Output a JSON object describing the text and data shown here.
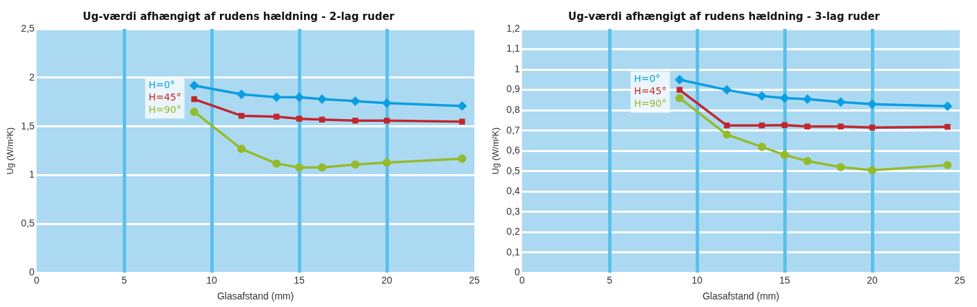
{
  "chart_data": [
    {
      "type": "line",
      "title": "Ug-værdi afhængigt af rudens hældning - 2-lag ruder",
      "xlabel": "Glasafstand (mm)",
      "ylabel": "Ug (W/m²K)",
      "xlim": [
        0,
        25
      ],
      "xticks": [
        0,
        5,
        10,
        15,
        20,
        25
      ],
      "ylim": [
        0,
        2.5
      ],
      "yticks": [
        0,
        {
          "value": 0.5,
          "label": "0,5"
        },
        1,
        {
          "value": 1.5,
          "label": "1,5"
        },
        2,
        {
          "value": 2.5,
          "label": "2,5"
        }
      ],
      "grid": true,
      "legend": "left",
      "x": [
        9,
        11.7,
        13.7,
        15,
        16.3,
        18.2,
        20,
        24.3
      ],
      "series": [
        {
          "name": "H=0°",
          "color": "#0a9ee0",
          "marker": "diamond",
          "values": [
            1.92,
            1.83,
            1.8,
            1.8,
            1.78,
            1.76,
            1.74,
            1.71
          ]
        },
        {
          "name": "H=45°",
          "color": "#c0272d",
          "marker": "square",
          "values": [
            1.78,
            1.61,
            1.6,
            1.58,
            1.57,
            1.56,
            1.56,
            1.55
          ]
        },
        {
          "name": "H=90°",
          "color": "#95bb2a",
          "marker": "circle",
          "values": [
            1.65,
            1.27,
            1.12,
            1.08,
            1.08,
            1.11,
            1.13,
            1.17
          ]
        }
      ]
    },
    {
      "type": "line",
      "title": "Ug-værdi afhængigt af rudens hældning - 3-lag ruder",
      "xlabel": "Glasafstand (mm)",
      "ylabel": "Ug (W/m²K)",
      "xlim": [
        0,
        25
      ],
      "xticks": [
        0,
        5,
        10,
        15,
        20,
        25
      ],
      "ylim": [
        0,
        1.2
      ],
      "yticks": [
        0,
        {
          "value": 0.1,
          "label": "0,1"
        },
        {
          "value": 0.2,
          "label": "0,2"
        },
        {
          "value": 0.3,
          "label": "0,3"
        },
        {
          "value": 0.4,
          "label": "0,4"
        },
        {
          "value": 0.5,
          "label": "0,5"
        },
        {
          "value": 0.6,
          "label": "0,6"
        },
        {
          "value": 0.7,
          "label": "0,7"
        },
        {
          "value": 0.8,
          "label": "0,8"
        },
        {
          "value": 0.9,
          "label": "0,9"
        },
        1,
        {
          "value": 1.1,
          "label": "1,1"
        },
        {
          "value": 1.2,
          "label": "1,2"
        }
      ],
      "grid": true,
      "legend": "left",
      "x": [
        9,
        11.7,
        13.7,
        15,
        16.3,
        18.2,
        20,
        24.3
      ],
      "series": [
        {
          "name": "H=0°",
          "color": "#0a9ee0",
          "marker": "diamond",
          "values": [
            0.95,
            0.9,
            0.87,
            0.86,
            0.855,
            0.84,
            0.83,
            0.82
          ]
        },
        {
          "name": "H=45°",
          "color": "#c0272d",
          "marker": "square",
          "values": [
            0.9,
            0.725,
            0.725,
            0.727,
            0.72,
            0.72,
            0.715,
            0.718
          ]
        },
        {
          "name": "H=90°",
          "color": "#95bb2a",
          "marker": "circle",
          "values": [
            0.86,
            0.68,
            0.62,
            0.58,
            0.55,
            0.52,
            0.505,
            0.53
          ]
        }
      ]
    }
  ]
}
